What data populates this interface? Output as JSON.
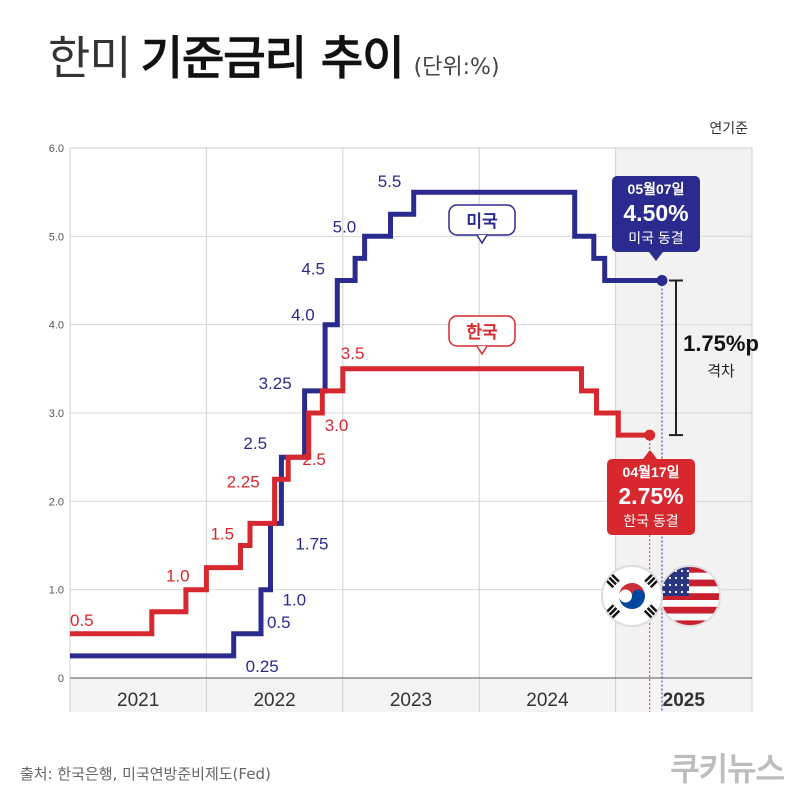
{
  "title": {
    "light": "한미",
    "bold": "기준금리 추이",
    "unit": "(단위:%)"
  },
  "basis_note": "연기준",
  "source": "출처: 한국은행, 미국연방준비제도(Fed)",
  "logo": "쿠키뉴스",
  "colors": {
    "us": "#2b2a8f",
    "kr": "#d6282e"
  },
  "chart_data": {
    "type": "line",
    "step": true,
    "ylim": [
      0,
      6.0
    ],
    "y_ticks": [
      "0",
      "1.0",
      "2.0",
      "3.0",
      "4.0",
      "5.0",
      "6.0"
    ],
    "x_ticks": [
      "2021",
      "2022",
      "2023",
      "2024",
      "2025"
    ],
    "x_range": [
      2021.0,
      2026.0
    ],
    "grid": true,
    "series": [
      {
        "name": "미국",
        "color": "#2b2a8f",
        "points": [
          [
            2021.0,
            0.25
          ],
          [
            2022.2,
            0.25
          ],
          [
            2022.2,
            0.5
          ],
          [
            2022.4,
            0.5
          ],
          [
            2022.4,
            1.0
          ],
          [
            2022.47,
            1.0
          ],
          [
            2022.47,
            1.75
          ],
          [
            2022.55,
            1.75
          ],
          [
            2022.55,
            2.5
          ],
          [
            2022.72,
            2.5
          ],
          [
            2022.72,
            3.25
          ],
          [
            2022.87,
            3.25
          ],
          [
            2022.87,
            4.0
          ],
          [
            2022.96,
            4.0
          ],
          [
            2022.96,
            4.5
          ],
          [
            2023.09,
            4.5
          ],
          [
            2023.09,
            4.75
          ],
          [
            2023.16,
            4.75
          ],
          [
            2023.16,
            5.0
          ],
          [
            2023.35,
            5.0
          ],
          [
            2023.35,
            5.25
          ],
          [
            2023.52,
            5.25
          ],
          [
            2023.52,
            5.5
          ],
          [
            2024.7,
            5.5
          ],
          [
            2024.7,
            5.0
          ],
          [
            2024.84,
            5.0
          ],
          [
            2024.84,
            4.75
          ],
          [
            2024.92,
            4.75
          ],
          [
            2024.92,
            4.5
          ],
          [
            2025.34,
            4.5
          ]
        ]
      },
      {
        "name": "한국",
        "color": "#d6282e",
        "points": [
          [
            2021.0,
            0.5
          ],
          [
            2021.6,
            0.5
          ],
          [
            2021.6,
            0.75
          ],
          [
            2021.85,
            0.75
          ],
          [
            2021.85,
            1.0
          ],
          [
            2022.0,
            1.0
          ],
          [
            2022.0,
            1.25
          ],
          [
            2022.25,
            1.25
          ],
          [
            2022.25,
            1.5
          ],
          [
            2022.32,
            1.5
          ],
          [
            2022.32,
            1.75
          ],
          [
            2022.5,
            1.75
          ],
          [
            2022.5,
            2.25
          ],
          [
            2022.6,
            2.25
          ],
          [
            2022.6,
            2.5
          ],
          [
            2022.75,
            2.5
          ],
          [
            2022.75,
            3.0
          ],
          [
            2022.85,
            3.0
          ],
          [
            2022.85,
            3.25
          ],
          [
            2023.0,
            3.25
          ],
          [
            2023.0,
            3.5
          ],
          [
            2024.75,
            3.5
          ],
          [
            2024.75,
            3.25
          ],
          [
            2024.86,
            3.25
          ],
          [
            2024.86,
            3.0
          ],
          [
            2025.02,
            3.0
          ],
          [
            2025.02,
            2.75
          ],
          [
            2025.25,
            2.75
          ]
        ]
      }
    ],
    "us_labels": [
      {
        "text": "0.25",
        "x": 2022.2,
        "y": 0.25
      },
      {
        "text": "0.5",
        "x": 2022.4,
        "y": 0.5
      },
      {
        "text": "1.0",
        "x": 2022.47,
        "y": 1.0
      },
      {
        "text": "1.75",
        "x": 2022.55,
        "y": 1.75
      },
      {
        "text": "2.5",
        "x": 2022.55,
        "y": 2.5
      },
      {
        "text": "3.25",
        "x": 2022.72,
        "y": 3.25
      },
      {
        "text": "4.0",
        "x": 2022.87,
        "y": 4.0
      },
      {
        "text": "4.5",
        "x": 2022.96,
        "y": 4.5
      },
      {
        "text": "5.0",
        "x": 2023.16,
        "y": 5.0
      },
      {
        "text": "5.5",
        "x": 2023.52,
        "y": 5.5
      }
    ],
    "kr_labels": [
      {
        "text": "0.5",
        "x": 2021.0,
        "y": 0.5
      },
      {
        "text": "1.0",
        "x": 2021.85,
        "y": 1.0
      },
      {
        "text": "1.5",
        "x": 2022.25,
        "y": 1.5
      },
      {
        "text": "2.25",
        "x": 2022.5,
        "y": 2.25
      },
      {
        "text": "2.5",
        "x": 2022.6,
        "y": 2.5
      },
      {
        "text": "3.0",
        "x": 2022.75,
        "y": 3.0
      },
      {
        "text": "3.5",
        "x": 2023.0,
        "y": 3.5
      }
    ],
    "series_tags": {
      "us": "미국",
      "kr": "한국"
    },
    "callouts": {
      "us": {
        "date": "05월07일",
        "value": "4.50%",
        "note": "미국 동결"
      },
      "kr": {
        "date": "04월17일",
        "value": "2.75%",
        "note": "한국 동결"
      }
    },
    "gap": {
      "value": "1.75%p",
      "label": "격차"
    }
  }
}
